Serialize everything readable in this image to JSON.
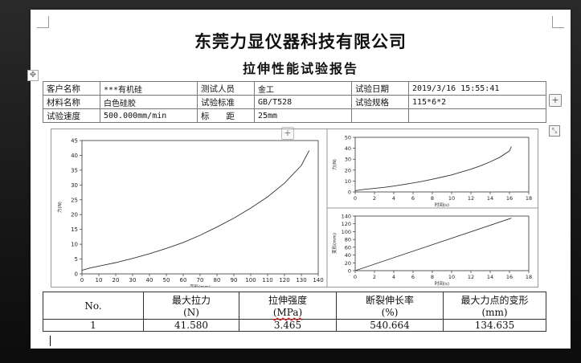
{
  "header": {
    "company": "东莞力显仪器科技有限公司",
    "report_title": "拉伸性能试验报告"
  },
  "info_rows": [
    [
      "客户名称",
      "***有机硅",
      "测试人员",
      "金工",
      "试验日期",
      "2019/3/16 15:55:41"
    ],
    [
      "材料名称",
      "白色硅胶",
      "试验标准",
      "GB/T528",
      "试验规格",
      "115*6*2"
    ],
    [
      "试验速度",
      "500.000mm/min",
      "标　　距",
      "25mm",
      "",
      ""
    ]
  ],
  "results": {
    "headers": [
      {
        "l1": "No.",
        "l2": ""
      },
      {
        "l1": "最大拉力",
        "l2": "(N)"
      },
      {
        "l1": "拉伸强度",
        "l2": "(MPa)"
      },
      {
        "l1": "断裂伸长率",
        "l2": "(%)"
      },
      {
        "l1": "最大力点的变形",
        "l2": "(mm)"
      }
    ],
    "rows": [
      [
        "1",
        "41.580",
        "3.465",
        "540.664",
        "134.635"
      ]
    ]
  },
  "chart_data": [
    {
      "type": "line",
      "title": "",
      "xlabel": "变形(mm)",
      "ylabel": "力(N)",
      "xlim": [
        0,
        140
      ],
      "ylim": [
        0,
        45
      ],
      "xticks": [
        0,
        10,
        20,
        30,
        40,
        50,
        60,
        70,
        80,
        90,
        100,
        110,
        120,
        130,
        140
      ],
      "yticks": [
        0,
        5,
        10,
        15,
        20,
        25,
        30,
        35,
        40,
        45
      ],
      "series": [
        {
          "x": [
            0,
            5,
            10,
            20,
            30,
            40,
            50,
            60,
            70,
            80,
            90,
            100,
            110,
            120,
            130,
            134.6
          ],
          "y": [
            1.2,
            2.0,
            2.6,
            3.8,
            5.2,
            6.8,
            8.6,
            10.6,
            13.0,
            15.8,
            18.8,
            22.2,
            26.0,
            30.6,
            36.6,
            41.6
          ]
        }
      ]
    },
    {
      "type": "line",
      "title": "",
      "xlabel": "时间(s)",
      "ylabel": "力(N)",
      "xlim": [
        0,
        18
      ],
      "ylim": [
        0,
        50
      ],
      "xticks": [
        0,
        2,
        4,
        6,
        8,
        10,
        12,
        14,
        16,
        18
      ],
      "yticks": [
        0,
        10,
        20,
        30,
        40,
        50
      ],
      "series": [
        {
          "x": [
            0,
            1,
            2,
            3,
            4,
            5,
            6,
            7,
            8,
            9,
            10,
            11,
            12,
            13,
            14,
            15,
            16,
            16.2
          ],
          "y": [
            1.2,
            2.4,
            3.2,
            4.2,
            5.4,
            6.8,
            8.2,
            9.8,
            11.6,
            13.6,
            15.6,
            18.2,
            20.8,
            24.0,
            27.6,
            31.8,
            37.6,
            41.6
          ]
        }
      ]
    },
    {
      "type": "line",
      "title": "",
      "xlabel": "时间(s)",
      "ylabel": "变形(mm)",
      "xlim": [
        0,
        18
      ],
      "ylim": [
        0,
        140
      ],
      "xticks": [
        0,
        2,
        4,
        6,
        8,
        10,
        12,
        14,
        16,
        18
      ],
      "yticks": [
        0,
        20,
        40,
        60,
        80,
        100,
        120,
        140
      ],
      "series": [
        {
          "x": [
            0,
            16.2
          ],
          "y": [
            0,
            134.6
          ]
        }
      ]
    }
  ]
}
